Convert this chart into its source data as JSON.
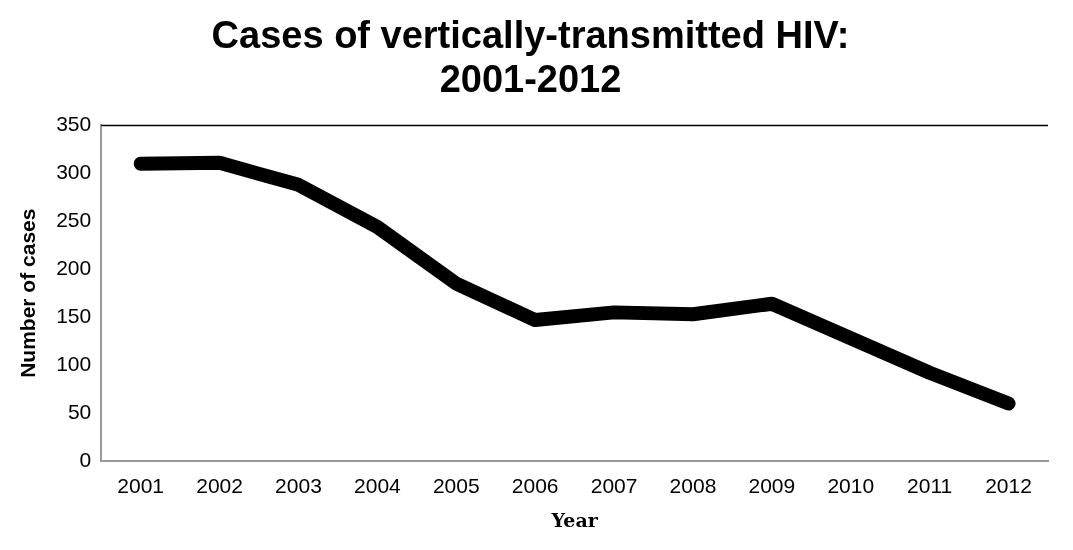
{
  "chart_data": {
    "type": "line",
    "title": [
      "Cases of vertically-transmitted HIV:",
      "2001-2012"
    ],
    "xlabel": "Year",
    "ylabel": "Number of cases",
    "categories": [
      "2001",
      "2002",
      "2003",
      "2004",
      "2005",
      "2006",
      "2007",
      "2008",
      "2009",
      "2010",
      "2011",
      "2012"
    ],
    "series": [
      {
        "color": "#000000",
        "values": [
          310,
          311,
          288,
          244,
          185,
          147,
          155,
          153,
          164,
          128,
          92,
          60
        ]
      }
    ],
    "ylim": [
      0,
      350
    ],
    "yticks": [
      0,
      50,
      100,
      150,
      200,
      250,
      300,
      350
    ],
    "grid": false,
    "legend": false,
    "marker": "none",
    "line_style": "solid"
  }
}
